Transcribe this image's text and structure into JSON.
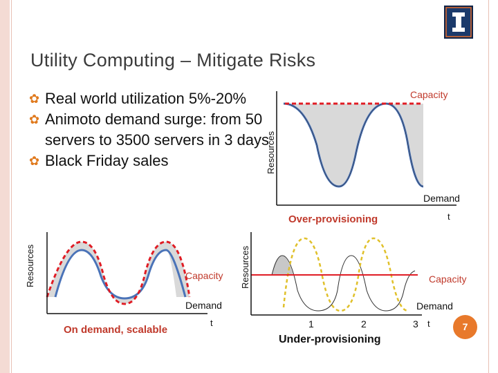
{
  "slide": {
    "title": "Utility Computing – Mitigate Risks",
    "bullets": [
      "Real world utilization 5%-20%",
      "Animoto demand surge: from 50 servers to 3500 servers in 3 days",
      "Black Friday sales"
    ],
    "page_number": "7",
    "colors": {
      "accent": "#e07a1e",
      "page_badge": "#e8792b",
      "capacity_dashed": "#e01c24",
      "demand_curve": "#4a73b8",
      "capacity_line": "#e01c24",
      "dashed_yellow": "#e0c02a"
    },
    "icons": {
      "logo": "university-logo",
      "bullet": "bullet-icon"
    }
  },
  "chart_data": [
    {
      "type": "area",
      "name": "Over-provisioning",
      "title": "Over-provisioning",
      "ylabel": "Resources",
      "xlabel": "t",
      "series_labels": [
        "Capacity",
        "Demand"
      ],
      "description": ""
    },
    {
      "type": "area",
      "name": "On demand, scalable",
      "title": "On demand, scalable",
      "ylabel": "Resources",
      "xlabel": "t",
      "series_labels": [
        "Capacity",
        "Demand"
      ]
    },
    {
      "type": "line",
      "name": "Under-provisioning",
      "title": "Under-provisioning",
      "ylabel": "Resources",
      "xlabel": "t",
      "x_ticks": [
        "1",
        "2",
        "3"
      ],
      "series_labels": [
        "Capacity",
        "Demand"
      ]
    }
  ],
  "text": {
    "capacity": "Capacity",
    "demand": "Demand",
    "resources": "Resources",
    "t": "t",
    "over": "Over-provisioning",
    "ondemand": "On demand, scalable",
    "under": "Under-provisioning",
    "tick1": "1",
    "tick2": "2",
    "tick3": "3"
  }
}
